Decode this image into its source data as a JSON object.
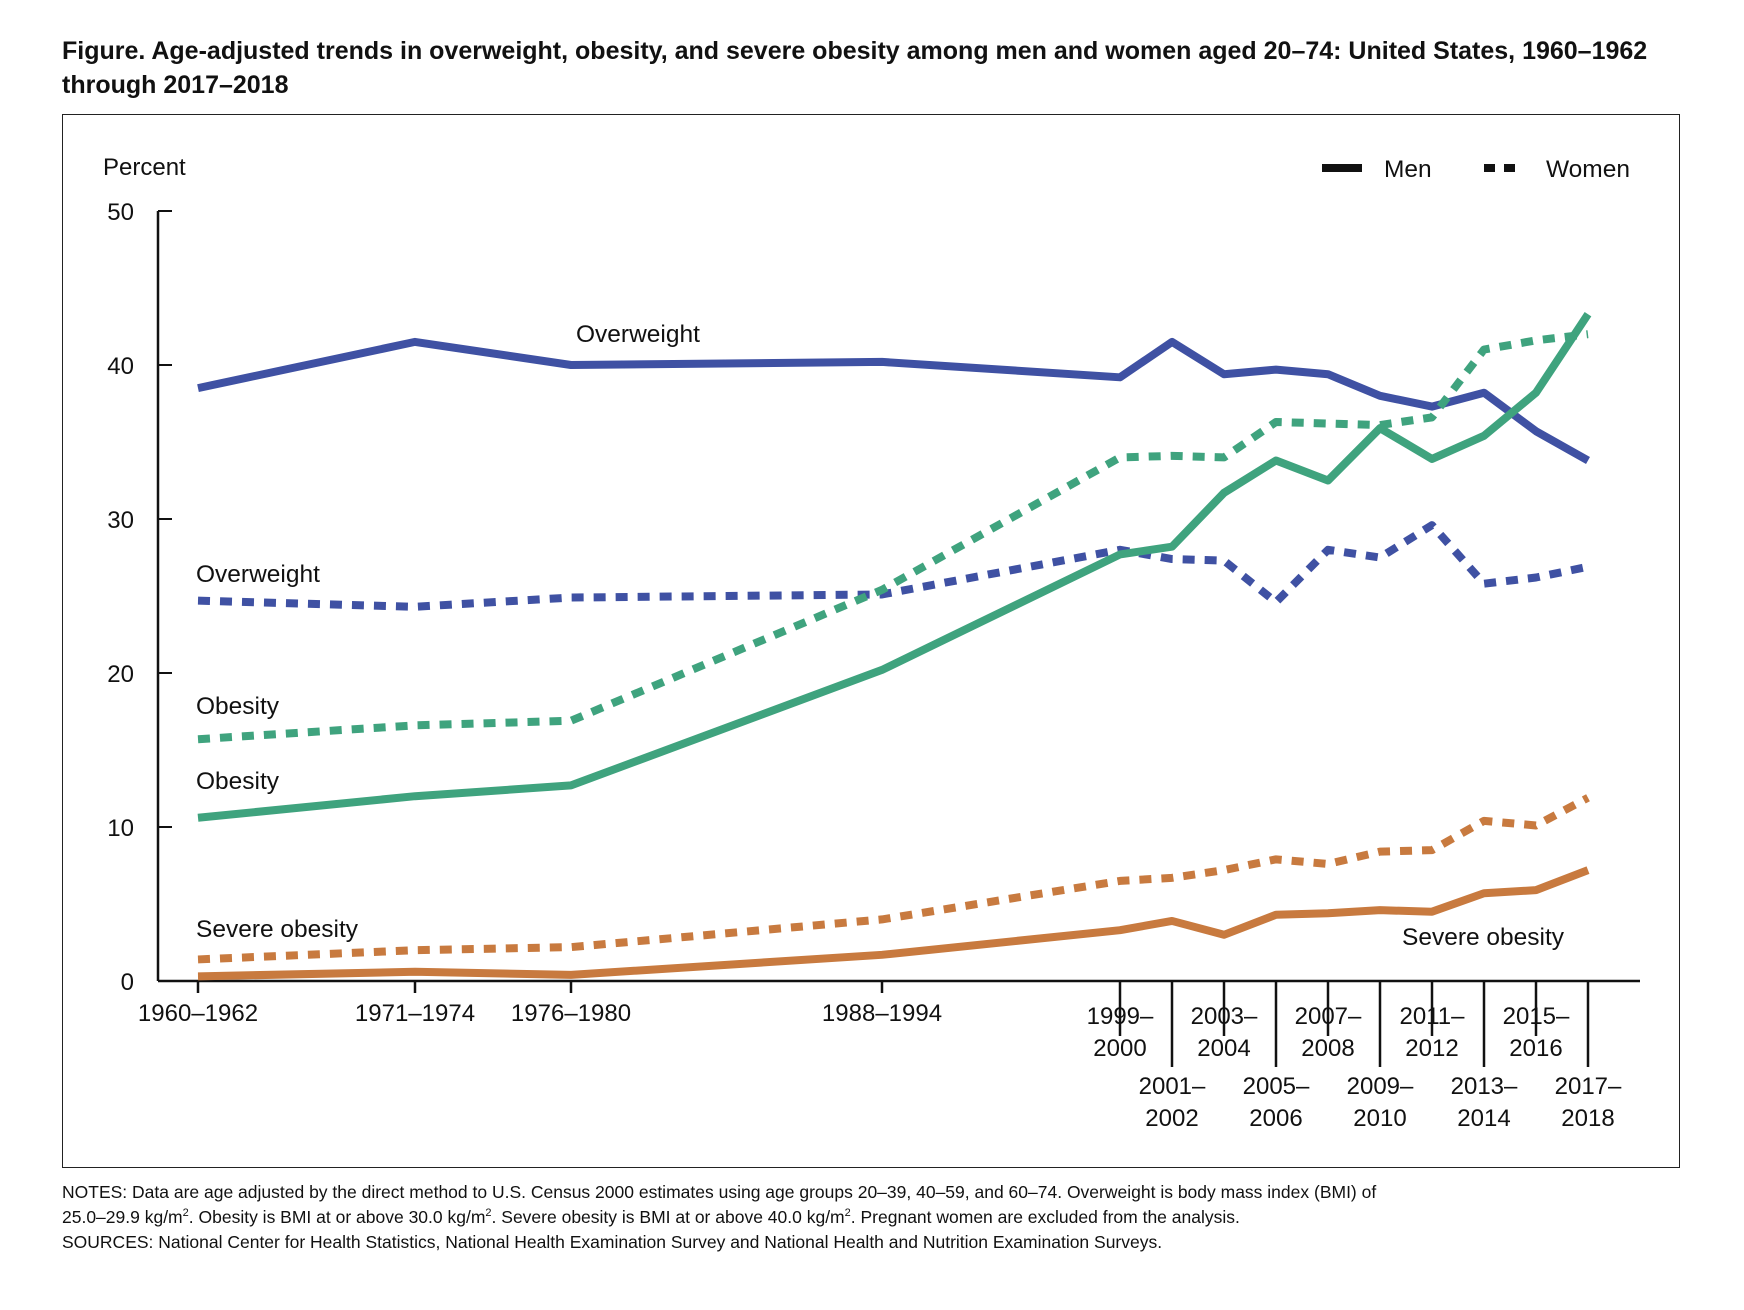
{
  "title": "Figure. Age-adjusted trends in overweight, obesity, and severe obesity among men and women aged 20–74: United States, 1960–1962 through 2017–2018",
  "chart_data": {
    "type": "line",
    "ylabel": "Percent",
    "ylim": [
      0,
      50
    ],
    "yticks": [
      0,
      10,
      20,
      30,
      40,
      50
    ],
    "x": [
      "1960–1962",
      "1971–1974",
      "1976–1980",
      "1988–1994",
      "1999–2000",
      "2001–2002",
      "2003–2004",
      "2005–2006",
      "2007–2008",
      "2009–2010",
      "2011–2012",
      "2013–2014",
      "2015–2016",
      "2017–2018"
    ],
    "legend": {
      "placement": "top-right",
      "entries": [
        {
          "label": "Men",
          "style": "solid"
        },
        {
          "label": "Women",
          "style": "dotted"
        }
      ]
    },
    "series": [
      {
        "name": "Overweight",
        "sex": "Men",
        "color": "#3f51a3",
        "style": "solid",
        "values": [
          38.5,
          41.5,
          40.0,
          40.2,
          39.2,
          41.5,
          39.4,
          39.7,
          39.4,
          38.0,
          37.3,
          38.2,
          35.7,
          33.8
        ]
      },
      {
        "name": "Overweight",
        "sex": "Women",
        "color": "#3f51a3",
        "style": "dotted",
        "values": [
          24.7,
          24.3,
          24.9,
          25.1,
          28.0,
          27.4,
          27.3,
          24.6,
          28.0,
          27.5,
          29.6,
          25.8,
          26.2,
          26.9
        ]
      },
      {
        "name": "Obesity",
        "sex": "Men",
        "color": "#3fa37e",
        "style": "solid",
        "values": [
          10.6,
          12.0,
          12.7,
          20.2,
          27.7,
          28.2,
          31.7,
          33.8,
          32.5,
          35.9,
          33.9,
          35.4,
          38.2,
          43.3
        ]
      },
      {
        "name": "Obesity",
        "sex": "Women",
        "color": "#3fa37e",
        "style": "dotted",
        "values": [
          15.7,
          16.6,
          16.9,
          25.4,
          34.0,
          34.1,
          34.0,
          36.3,
          36.2,
          36.1,
          36.6,
          41.0,
          41.6,
          42.0
        ]
      },
      {
        "name": "Severe obesity",
        "sex": "Men",
        "color": "#c87a3f",
        "style": "solid",
        "values": [
          0.3,
          0.6,
          0.4,
          1.7,
          3.3,
          3.9,
          3.0,
          4.3,
          4.4,
          4.6,
          4.5,
          5.7,
          5.9,
          7.2
        ]
      },
      {
        "name": "Severe obesity",
        "sex": "Women",
        "color": "#c87a3f",
        "style": "dotted",
        "values": [
          1.4,
          2.0,
          2.2,
          4.0,
          6.5,
          6.7,
          7.2,
          7.9,
          7.6,
          8.4,
          8.5,
          10.4,
          10.1,
          11.9
        ]
      }
    ],
    "annotations": [
      {
        "text": "Overweight",
        "series": "Men overweight"
      },
      {
        "text": "Overweight",
        "series": "Women overweight"
      },
      {
        "text": "Obesity",
        "series": "Women obesity"
      },
      {
        "text": "Obesity",
        "series": "Men obesity"
      },
      {
        "text": "Severe obesity",
        "series": "Women severe obesity"
      },
      {
        "text": "Severe obesity",
        "series": "Men severe obesity"
      }
    ]
  },
  "notes": {
    "line1": "NOTES: Data are age adjusted by the direct method to U.S. Census 2000 estimates using age groups 20–39, 40–59, and 60–74. Overweight is body mass index (BMI) of",
    "line2_a": "25.0–29.9 kg/m",
    "line2_b": ". Obesity is BMI at or above 30.0 kg/m",
    "line2_c": ". Severe obesity is BMI at or above 40.0 kg/m",
    "line2_d": ". Pregnant women are excluded from the analysis.",
    "sup": "2",
    "sources": "SOURCES: National Center for Health Statistics, National Health Examination Survey and National Health and Nutrition Examination Surveys."
  }
}
